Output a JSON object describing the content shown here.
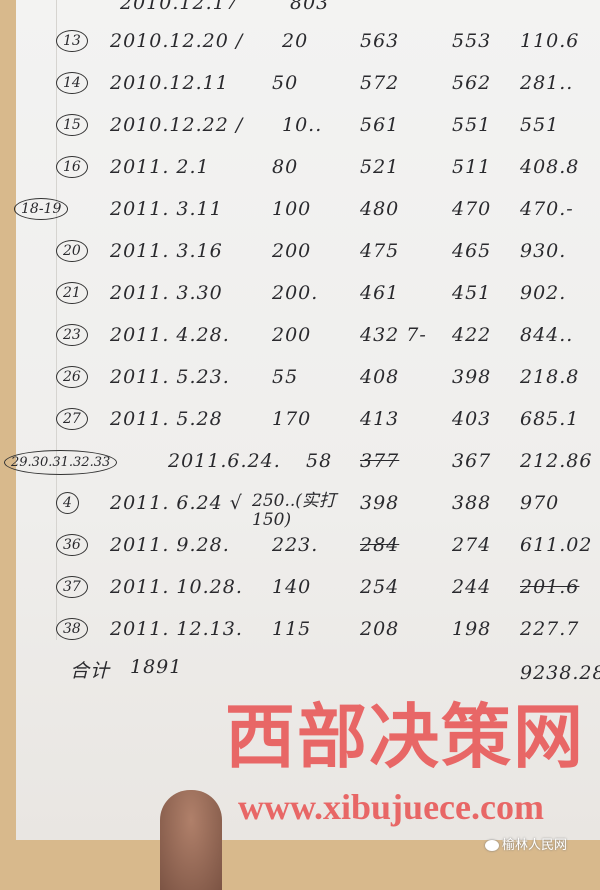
{
  "top_partial": {
    "date": "2010.12.17",
    "amount": "803"
  },
  "rows": [
    {
      "no": "13",
      "date": "2010.12.20 /",
      "amount": "20",
      "c1": "563",
      "c2": "553",
      "c3": "110.6"
    },
    {
      "no": "14",
      "date": "2010.12.11",
      "amount": "50",
      "c1": "572",
      "c2": "562",
      "c3": "281.."
    },
    {
      "no": "15",
      "date": "2010.12.22 /",
      "amount": "10..",
      "c1": "561",
      "c2": "551",
      "c3": "551"
    },
    {
      "no": "16",
      "date": "2011. 2.1",
      "amount": "80",
      "c1": "521",
      "c2": "511",
      "c3": "408.8"
    },
    {
      "no": "18-19",
      "date": "2011. 3.11",
      "amount": "100",
      "c1": "480",
      "c2": "470",
      "c3": "470.-"
    },
    {
      "no": "20",
      "date": "2011. 3.16",
      "amount": "200",
      "c1": "475",
      "c2": "465",
      "c3": "930."
    },
    {
      "no": "21",
      "date": "2011. 3.30",
      "amount": "200.",
      "c1": "461",
      "c2": "451",
      "c3": "902."
    },
    {
      "no": "23",
      "date": "2011. 4.28.",
      "amount": "200",
      "c1": "432 7-",
      "c2": "422",
      "c3": "844.."
    },
    {
      "no": "26",
      "date": "2011. 5.23.",
      "amount": "55",
      "c1": "408",
      "c2": "398",
      "c3": "218.8"
    },
    {
      "no": "27",
      "date": "2011. 5.28",
      "amount": "170",
      "c1": "413",
      "c2": "403",
      "c3": "685.1"
    },
    {
      "no": "29.30.31.32.33",
      "date": "2011.6.24.",
      "amount": "58",
      "c1": "377",
      "c2": "367",
      "c3": "212.86"
    },
    {
      "no": "4",
      "date": "2011. 6.24 √",
      "amount": "250..(实打150)",
      "c1": "398",
      "c2": "388",
      "c3": "970"
    },
    {
      "no": "36",
      "date": "2011. 9.28.",
      "amount": "223.",
      "c1": "284",
      "c2": "274",
      "c3": "611.02"
    },
    {
      "no": "37",
      "date": "2011. 10.28.",
      "amount": "140",
      "c1": "254",
      "c2": "244",
      "c3": "201.6"
    },
    {
      "no": "38",
      "date": "2011. 12.13.",
      "amount": "115",
      "c1": "208",
      "c2": "198",
      "c3": "227.7"
    }
  ],
  "total": {
    "label": "合计",
    "amount": "1891",
    "c3": "9238.28"
  },
  "watermark": {
    "title": "西部决策网",
    "url": "www.xibujuece.com",
    "source": "榆林人民网"
  }
}
